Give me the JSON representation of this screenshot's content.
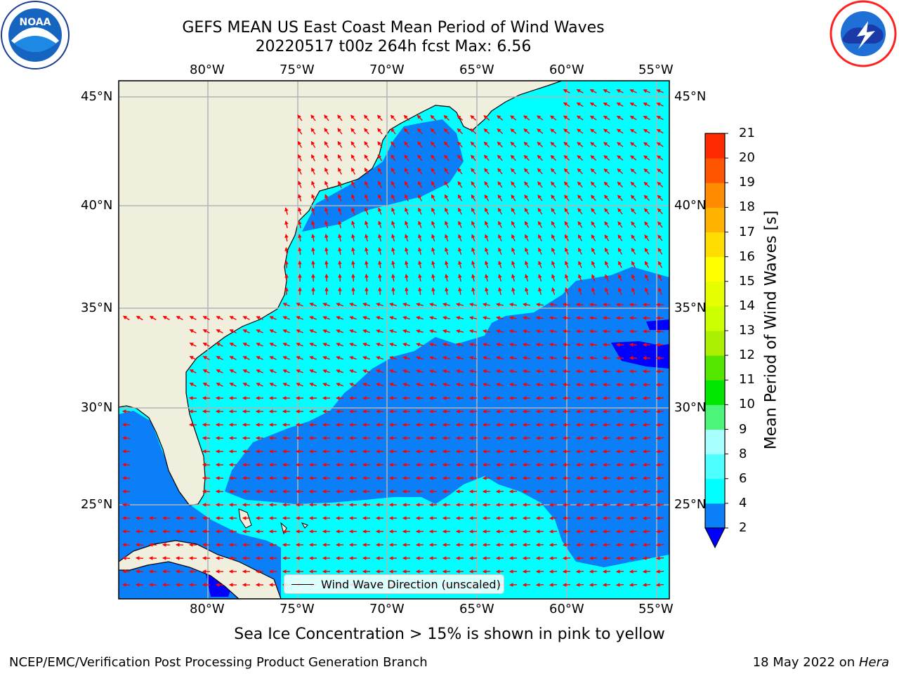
{
  "title": "GEFS MEAN US East Coast Mean Period of Wind Waves",
  "subtitle": "20220517 t00z 264h fcst   Max: 6.56",
  "logos": {
    "left": "noaa-logo",
    "right": "nws-logo"
  },
  "map": {
    "lon_range": [
      -85,
      -54.3
    ],
    "lat_range": [
      20.3,
      46.2
    ],
    "lon_ticks": [
      "80°W",
      "75°W",
      "70°W",
      "65°W",
      "60°W",
      "55°W"
    ],
    "lat_ticks": [
      "45°N",
      "40°N",
      "35°N",
      "30°N",
      "25°N"
    ],
    "colors": {
      "land": "#f0eedc",
      "period_2_4": "#0a7ff8",
      "period_4_6": "#00ffff",
      "period_0_2": "#0000ff",
      "arrow": "#ff0000",
      "grid": "#b3b3b3"
    }
  },
  "legend": {
    "label": "Wind Wave Direction (unscaled)"
  },
  "colorbar": {
    "label": "Mean Period of Wind Waves [s]",
    "ticks": [
      "2",
      "4",
      "6",
      "8",
      "9",
      "10",
      "11",
      "12",
      "13",
      "14",
      "15",
      "16",
      "17",
      "18",
      "19",
      "20",
      "21"
    ],
    "colors": [
      "#0a7ff8",
      "#00ffff",
      "#4dffff",
      "#a8ffff",
      "#4cf57a",
      "#00e600",
      "#55e600",
      "#aaf000",
      "#ccff00",
      "#e6ff00",
      "#ffff00",
      "#ffdd00",
      "#ffb300",
      "#ff8c00",
      "#ff5500",
      "#ff2a00",
      "#ff0000"
    ],
    "under_color": "#0000ff"
  },
  "notes": {
    "sea_ice": "Sea Ice Concentration > 15% is shown in pink to yellow"
  },
  "footer": {
    "left": "NCEP/EMC/Verification Post Processing Product Generation Branch",
    "right_date": "18 May 2022 on ",
    "right_host": "Hera"
  }
}
